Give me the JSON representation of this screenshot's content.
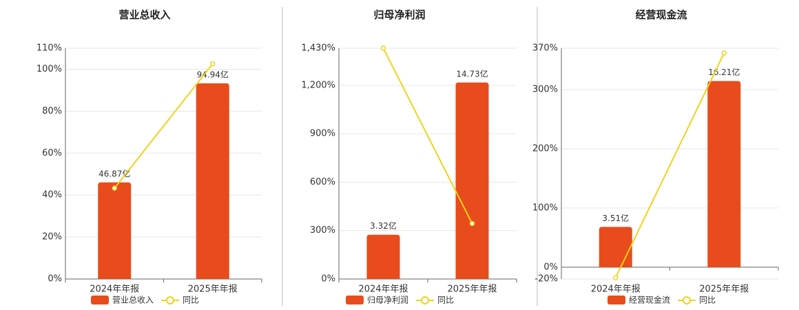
{
  "chart_data": [
    {
      "type": "bar-line",
      "title": "营业总收入",
      "categories": [
        "2024年年报",
        "2025年年报"
      ],
      "series": [
        {
          "name": "营业总收入",
          "type": "bar",
          "color": "#e84c1c",
          "axis": "y2",
          "values": [
            46.87,
            94.94
          ],
          "value_labels": [
            "46.87亿",
            "94.94亿"
          ]
        },
        {
          "name": "同比",
          "type": "line",
          "color": "#f2d21b",
          "values": [
            43.3,
            102.56
          ]
        }
      ],
      "ylim": [
        0,
        110
      ],
      "yticks": [
        {
          "value": 0,
          "label": "0%"
        },
        {
          "value": 20,
          "label": "20%"
        },
        {
          "value": 40,
          "label": "40%"
        },
        {
          "value": 60,
          "label": "60%"
        },
        {
          "value": 80,
          "label": "80%"
        },
        {
          "value": 100,
          "label": "100%"
        },
        {
          "value": 110,
          "label": "110%"
        }
      ],
      "y2lim": [
        0,
        112
      ],
      "grid": true
    },
    {
      "type": "bar-line",
      "title": "归母净利润",
      "categories": [
        "2024年年报",
        "2025年年报"
      ],
      "series": [
        {
          "name": "归母净利润",
          "type": "bar",
          "color": "#e84c1c",
          "axis": "y2",
          "values": [
            3.32,
            14.73
          ],
          "value_labels": [
            "3.32亿",
            "14.73亿"
          ]
        },
        {
          "name": "同比",
          "type": "line",
          "color": "#f2d21b",
          "values": [
            1430,
            343.67
          ]
        }
      ],
      "ylim": [
        0,
        1430
      ],
      "yticks": [
        {
          "value": 0,
          "label": "0%"
        },
        {
          "value": 300,
          "label": "300%"
        },
        {
          "value": 600,
          "label": "600%"
        },
        {
          "value": 900,
          "label": "900%"
        },
        {
          "value": 1200,
          "label": "1,200%"
        },
        {
          "value": 1430,
          "label": "1,430%"
        }
      ],
      "y2lim": [
        0,
        17.3
      ],
      "grid": true
    },
    {
      "type": "bar-line",
      "title": "经营现金流",
      "categories": [
        "2024年年报",
        "2025年年报"
      ],
      "series": [
        {
          "name": "经营现金流",
          "type": "bar",
          "color": "#e84c1c",
          "axis": "y2",
          "values": [
            3.51,
            16.21
          ],
          "value_labels": [
            "3.51亿",
            "16.21亿"
          ]
        },
        {
          "name": "同比",
          "type": "line",
          "color": "#f2d21b",
          "values": [
            -18,
            361.82
          ]
        }
      ],
      "ylim": [
        -20,
        370
      ],
      "yticks": [
        {
          "value": -20,
          "label": "-20%"
        },
        {
          "value": 0,
          "label": "0%"
        },
        {
          "value": 100,
          "label": "100%"
        },
        {
          "value": 200,
          "label": "200%"
        },
        {
          "value": 300,
          "label": "300%"
        },
        {
          "value": 370,
          "label": "370%"
        }
      ],
      "y2lim": [
        -1.03,
        19.07
      ],
      "grid": true
    }
  ]
}
